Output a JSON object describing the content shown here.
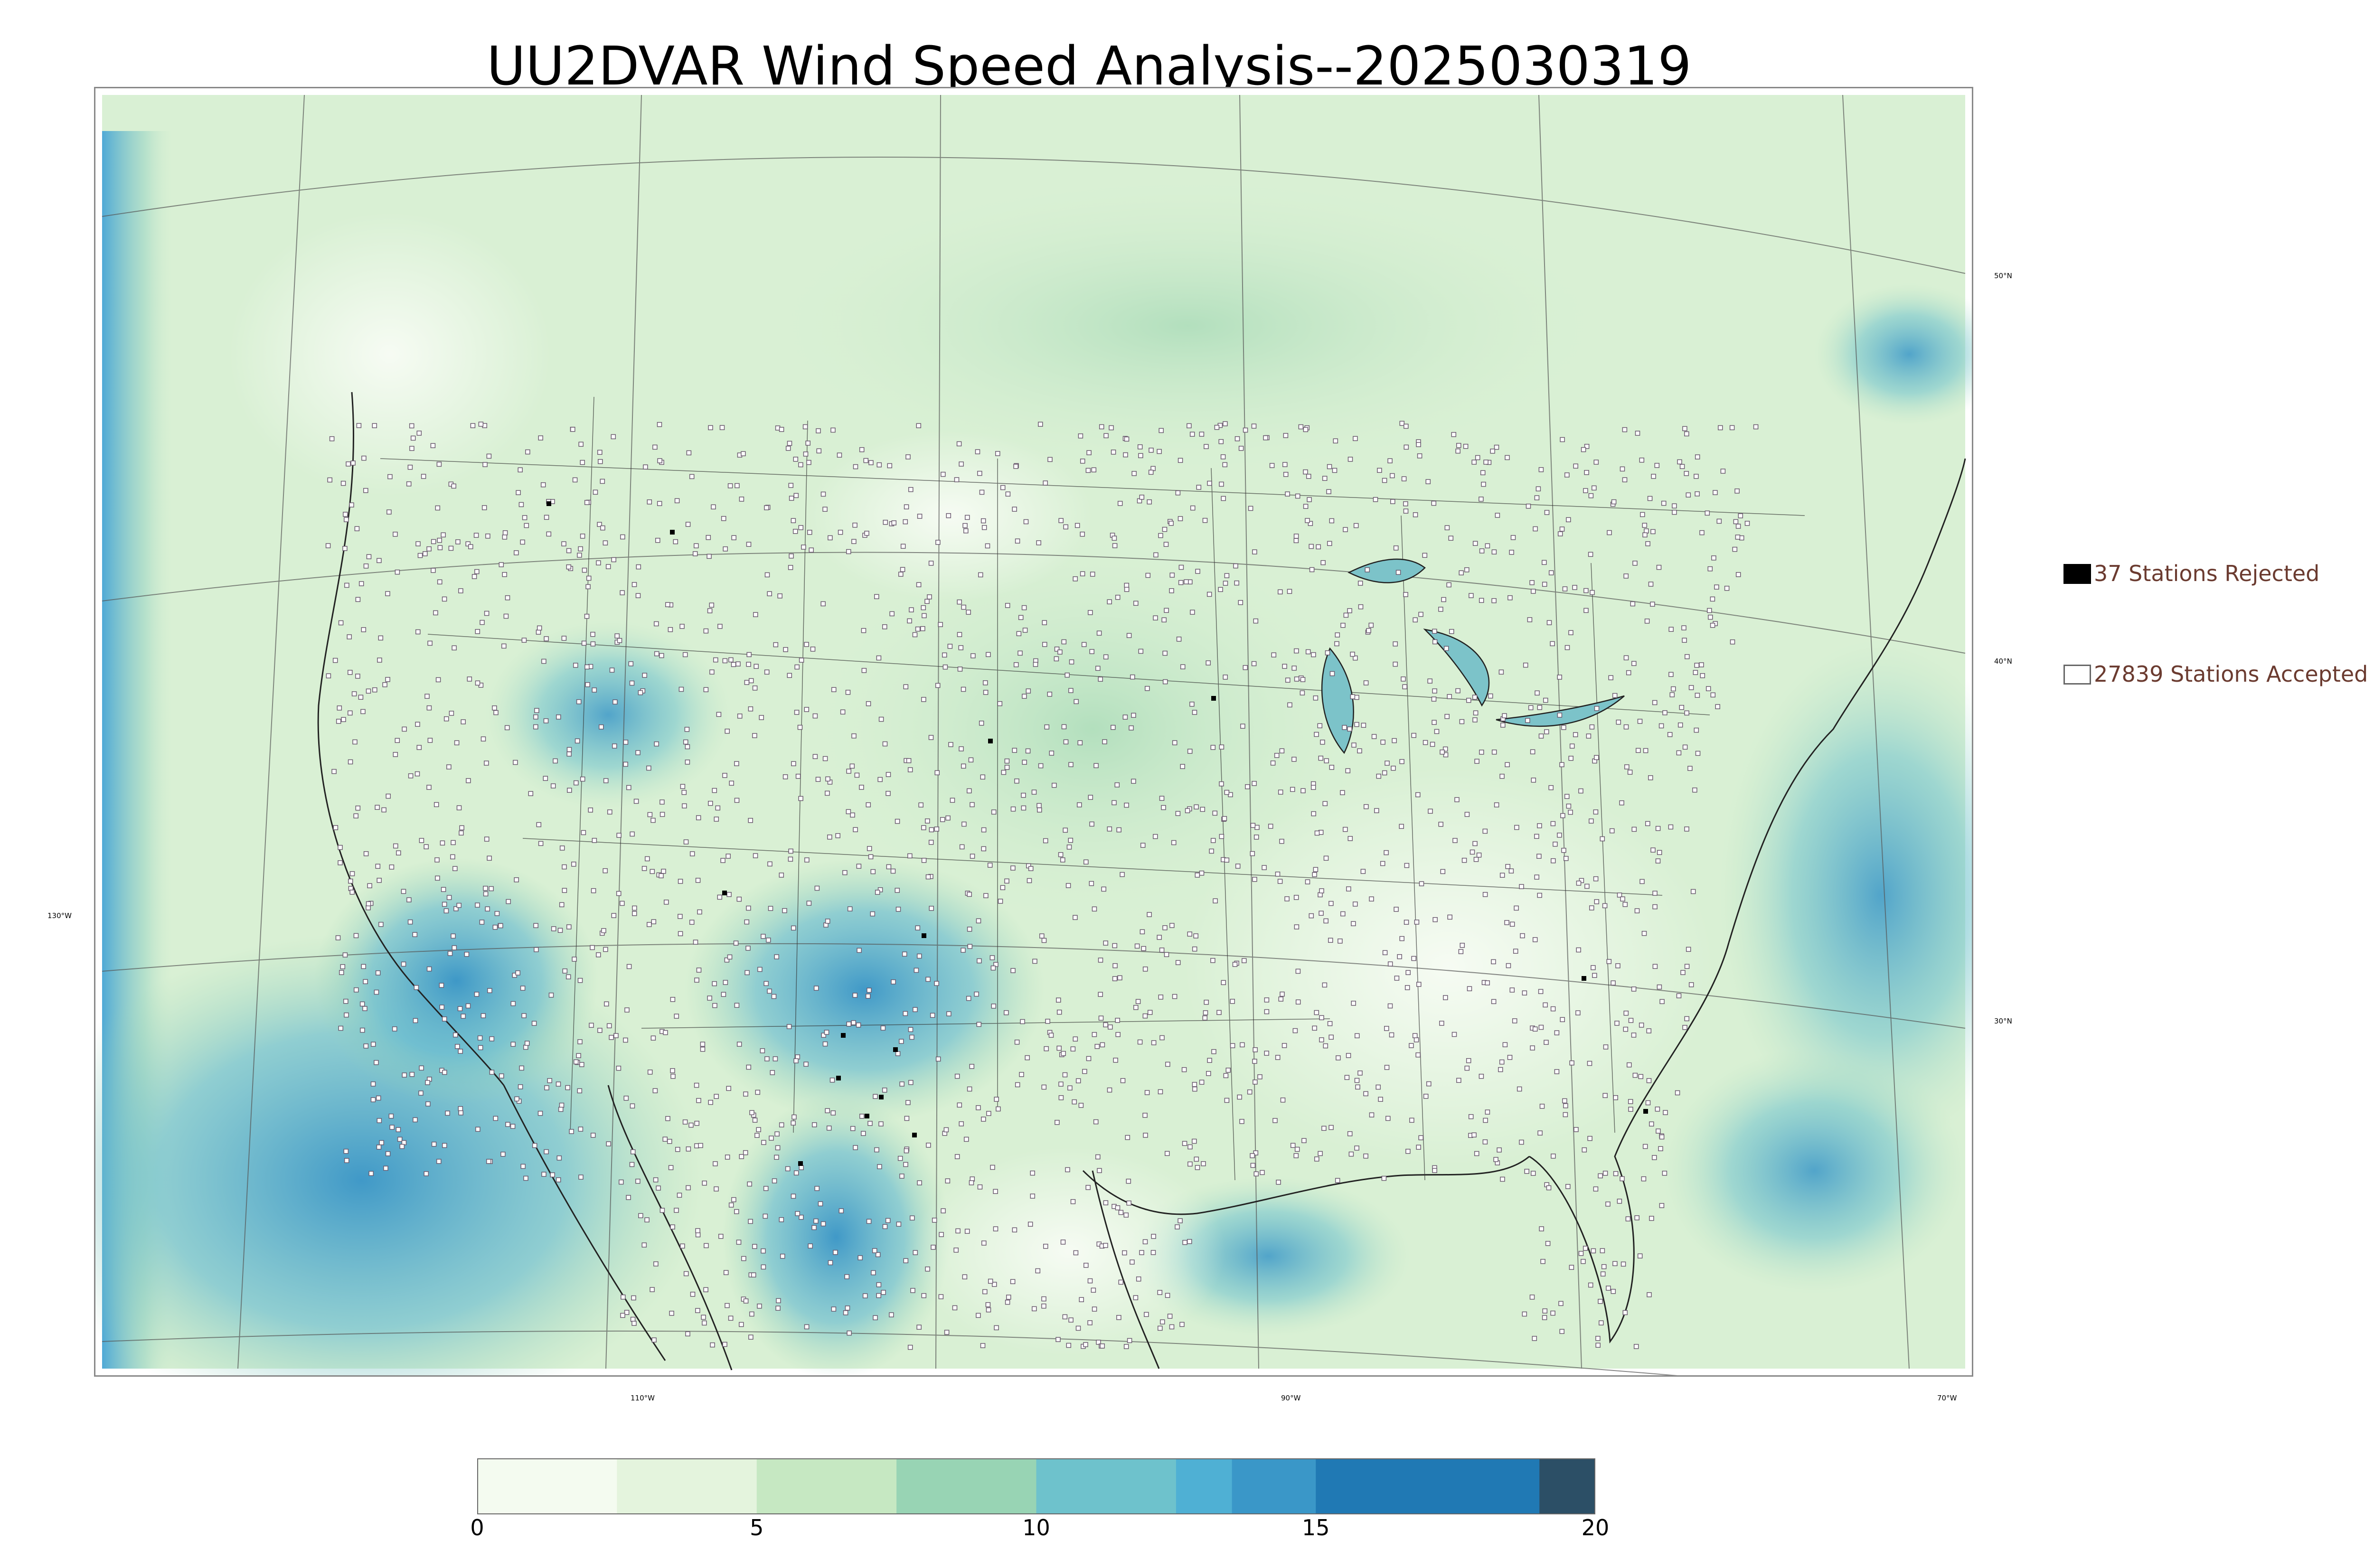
{
  "title": "UU2DVAR Wind Speed Analysis--2025030319",
  "map": {
    "parallel_labels": [
      "50°N",
      "40°N",
      "30°N"
    ],
    "meridian_labels": [
      "130°W",
      "110°W",
      "90°W",
      "70°W"
    ],
    "field_colors": {
      "calm": "#f3faef",
      "light": "#cfeccb",
      "moderate": "#9bd4b3",
      "fresh": "#5bb5cf",
      "strong": "#2b8cbe",
      "gale": "#1d6fa8"
    },
    "station_accepted_color": "#6a5a6e",
    "station_rejected_color": "#000000"
  },
  "legend": {
    "rejected": {
      "label": "37 Stations Rejected",
      "count": 37,
      "color": "#000000"
    },
    "accepted": {
      "label": "27839 Stations Accepted",
      "count": 27839,
      "color": "#ffffff"
    }
  },
  "colorbar": {
    "min": 0,
    "max": 20,
    "ticks": [
      "0",
      "5",
      "10",
      "15",
      "20"
    ],
    "steps": [
      {
        "from": 0,
        "to": 2.5,
        "color": "#f4fbf0"
      },
      {
        "from": 2.5,
        "to": 5,
        "color": "#e4f4dd"
      },
      {
        "from": 5,
        "to": 7.5,
        "color": "#c6e8c2"
      },
      {
        "from": 7.5,
        "to": 10,
        "color": "#98d4b4"
      },
      {
        "from": 10,
        "to": 12.5,
        "color": "#6ec2cc"
      },
      {
        "from": 12.5,
        "to": 13.5,
        "color": "#4fb0d4"
      },
      {
        "from": 13.5,
        "to": 15,
        "color": "#3a97c8"
      },
      {
        "from": 15,
        "to": 19,
        "color": "#2079b4"
      },
      {
        "from": 19,
        "to": 20,
        "color": "#2c4f66"
      }
    ]
  }
}
